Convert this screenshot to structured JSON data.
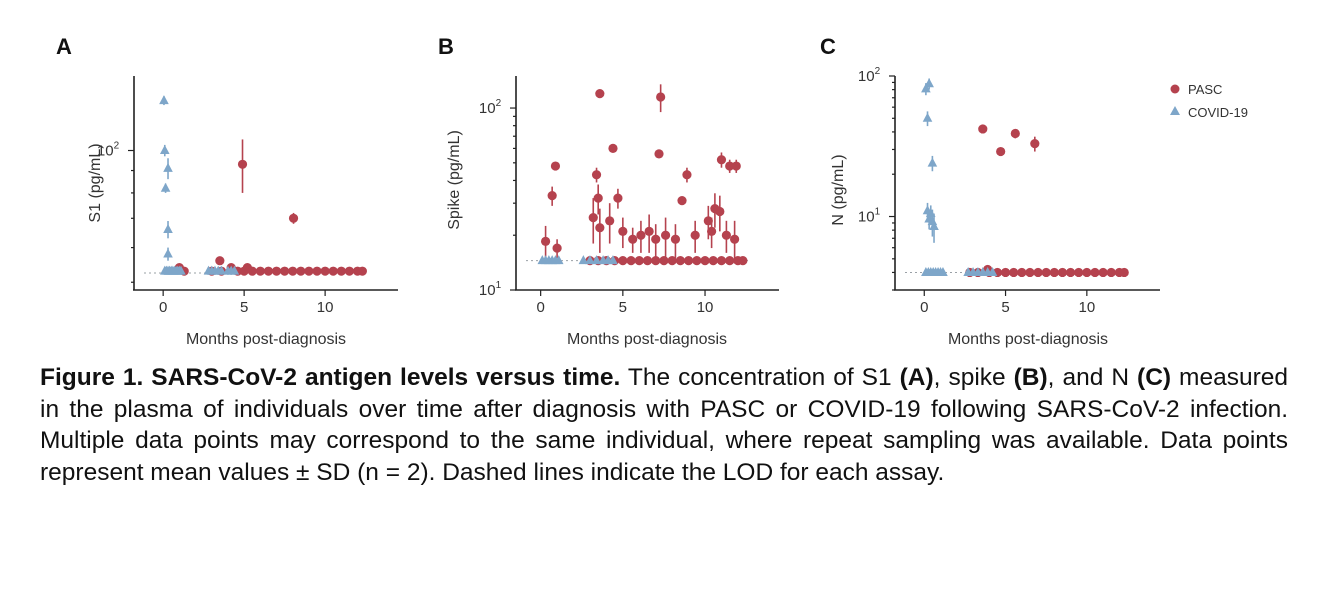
{
  "colors": {
    "pasc": "#b5424e",
    "covid": "#7ea6c9"
  },
  "legend": [
    "PASC",
    "COVID-19"
  ],
  "caption": {
    "title": "Figure 1. SARS-CoV-2 antigen levels versus time.",
    "t1": " The concentration of S1 ",
    "b1": "(A)",
    "t2": ", spike ",
    "b2": "(B)",
    "t3": ", and N ",
    "b3": "(C)",
    "t4": " measured in the plasma of individuals over time after diagnosis with PASC or COVID-19 following SARS-CoV-2 infection. Multiple data points may correspond to the same individual, where repeat sampling was available. Data points represent mean values ± SD (n = 2). Dashed lines indicate the LOD for each assay."
  },
  "chart_data": [
    {
      "panel": "A",
      "type": "scatter",
      "ylabel": "S1  (pg/mL)",
      "xlabel": "Months post-diagnosis",
      "yscale": "log",
      "xlim": [
        -1.8,
        14.5
      ],
      "ylim": [
        48,
        148
      ],
      "xticks": [
        0,
        5,
        10
      ],
      "yticks": [
        {
          "v": 100,
          "base": "10",
          "exp": "2"
        }
      ],
      "lod": 52.5,
      "series": [
        {
          "name": "COVID-19",
          "points": [
            [
              0.05,
              130,
              3
            ],
            [
              0.1,
              100,
              3
            ],
            [
              0.3,
              91,
              5
            ],
            [
              0.15,
              82,
              2
            ],
            [
              0.3,
              66,
              3
            ],
            [
              0.1,
              53,
              1
            ],
            [
              0.2,
              53,
              1
            ],
            [
              0.3,
              53,
              1
            ],
            [
              0.4,
              53,
              1
            ],
            [
              0.5,
              53,
              1
            ],
            [
              0.6,
              53,
              1
            ],
            [
              0.7,
              53,
              1
            ],
            [
              0.8,
              53,
              1
            ],
            [
              0.9,
              53,
              1
            ],
            [
              1.0,
              53,
              1
            ],
            [
              1.1,
              53,
              1
            ],
            [
              0.3,
              58,
              2
            ],
            [
              2.8,
              53,
              1
            ],
            [
              3.0,
              53,
              1
            ],
            [
              3.2,
              53,
              1
            ],
            [
              3.4,
              53,
              1
            ],
            [
              3.6,
              53,
              1
            ],
            [
              4.0,
              53,
              1
            ],
            [
              4.2,
              53,
              1
            ],
            [
              4.4,
              53,
              1
            ]
          ]
        },
        {
          "name": "PASC",
          "points": [
            [
              4.9,
              93,
              13
            ],
            [
              8.05,
              70,
              2
            ],
            [
              3.5,
              56,
              1
            ],
            [
              1.0,
              54,
              1
            ],
            [
              1.3,
              53,
              1
            ],
            [
              4.2,
              54,
              1
            ],
            [
              5.2,
              54,
              1
            ],
            [
              3.0,
              53,
              1
            ],
            [
              3.6,
              53,
              1
            ],
            [
              4.6,
              53,
              1
            ],
            [
              5.0,
              53,
              1
            ],
            [
              5.5,
              53,
              1
            ],
            [
              6.0,
              53,
              1
            ],
            [
              6.5,
              53,
              1
            ],
            [
              7.0,
              53,
              1
            ],
            [
              7.5,
              53,
              1
            ],
            [
              8.0,
              53,
              1
            ],
            [
              8.5,
              53,
              1
            ],
            [
              9.0,
              53,
              1
            ],
            [
              9.5,
              53,
              1
            ],
            [
              10.0,
              53,
              1
            ],
            [
              10.5,
              53,
              1
            ],
            [
              11.0,
              53,
              1
            ],
            [
              11.5,
              53,
              1
            ],
            [
              12.0,
              53,
              1
            ],
            [
              12.3,
              53,
              1
            ]
          ]
        }
      ]
    },
    {
      "panel": "B",
      "type": "scatter",
      "ylabel": "Spike  (pg/mL)",
      "xlabel": "Months post-diagnosis",
      "yscale": "log",
      "xlim": [
        -1.5,
        14.5
      ],
      "ylim": [
        10,
        150
      ],
      "xticks": [
        0,
        5,
        10
      ],
      "yticks": [
        {
          "v": 10,
          "base": "10",
          "exp": "1"
        },
        {
          "v": 100,
          "base": "10",
          "exp": "2"
        }
      ],
      "lod": 14.5,
      "series": [
        {
          "name": "COVID-19",
          "points": [
            [
              0.1,
              14.5,
              0.5
            ],
            [
              0.3,
              14.5,
              0.5
            ],
            [
              0.5,
              14.5,
              0.5
            ],
            [
              0.7,
              14.5,
              0.5
            ],
            [
              0.9,
              14.5,
              0.5
            ],
            [
              1.1,
              14.5,
              0.5
            ],
            [
              2.6,
              14.5,
              0.3
            ],
            [
              3.0,
              14.5,
              0.3
            ],
            [
              3.4,
              14.5,
              0.3
            ],
            [
              3.8,
              14.5,
              0.3
            ],
            [
              4.1,
              14.5,
              0.3
            ],
            [
              4.4,
              14.5,
              0.3
            ]
          ]
        },
        {
          "name": "PASC",
          "points": [
            [
              3.6,
              120,
              0
            ],
            [
              7.3,
              115,
              20
            ],
            [
              4.4,
              60,
              0
            ],
            [
              7.2,
              56,
              0
            ],
            [
              11.0,
              52,
              5
            ],
            [
              11.5,
              48,
              4
            ],
            [
              11.9,
              48,
              4
            ],
            [
              0.9,
              48,
              0
            ],
            [
              8.9,
              43,
              4
            ],
            [
              3.4,
              43,
              4
            ],
            [
              0.7,
              33,
              4
            ],
            [
              3.5,
              32,
              6
            ],
            [
              4.7,
              32,
              4
            ],
            [
              8.6,
              31,
              0
            ],
            [
              10.6,
              28,
              6
            ],
            [
              10.9,
              27,
              6
            ],
            [
              0.3,
              18.5,
              4
            ],
            [
              3.2,
              25,
              7
            ],
            [
              3.6,
              22,
              6
            ],
            [
              4.2,
              24,
              6
            ],
            [
              5.0,
              21,
              4
            ],
            [
              5.6,
              19,
              3
            ],
            [
              6.1,
              20,
              4
            ],
            [
              6.6,
              21,
              5
            ],
            [
              7.0,
              19,
              4
            ],
            [
              7.6,
              20,
              5
            ],
            [
              8.2,
              19,
              4
            ],
            [
              9.4,
              20,
              4
            ],
            [
              10.2,
              24,
              5
            ],
            [
              10.4,
              21,
              4
            ],
            [
              11.3,
              20,
              4
            ],
            [
              11.8,
              19,
              5
            ],
            [
              1.0,
              17,
              2
            ],
            [
              3.0,
              14.5,
              0.5
            ],
            [
              3.5,
              14.5,
              0.5
            ],
            [
              4.0,
              14.5,
              0.5
            ],
            [
              4.5,
              14.5,
              0.5
            ],
            [
              5.0,
              14.5,
              0.5
            ],
            [
              5.5,
              14.5,
              0.5
            ],
            [
              6.0,
              14.5,
              0.5
            ],
            [
              6.5,
              14.5,
              0.5
            ],
            [
              7.0,
              14.5,
              0.5
            ],
            [
              7.5,
              14.5,
              0.5
            ],
            [
              8.0,
              14.5,
              0.5
            ],
            [
              8.5,
              14.5,
              0.5
            ],
            [
              9.0,
              14.5,
              0.5
            ],
            [
              9.5,
              14.5,
              0.5
            ],
            [
              10.0,
              14.5,
              0.5
            ],
            [
              10.5,
              14.5,
              0.5
            ],
            [
              11.0,
              14.5,
              0.5
            ],
            [
              11.5,
              14.5,
              0.5
            ],
            [
              12.0,
              14.5,
              0.5
            ],
            [
              12.3,
              14.5,
              0.5
            ]
          ]
        }
      ]
    },
    {
      "panel": "C",
      "type": "scatter",
      "ylabel": "N  (pg/mL)",
      "xlabel": "Months post-diagnosis",
      "yscale": "log",
      "xlim": [
        -1.8,
        14.5
      ],
      "ylim": [
        3.0,
        100
      ],
      "xticks": [
        0,
        5,
        10
      ],
      "yticks": [
        {
          "v": 10,
          "base": "10",
          "exp": "1"
        },
        {
          "v": 100,
          "base": "10",
          "exp": "2"
        }
      ],
      "lod": 4.0,
      "series": [
        {
          "name": "COVID-19",
          "points": [
            [
              0.3,
              88,
              8
            ],
            [
              0.1,
              81,
              8
            ],
            [
              0.2,
              50,
              6
            ],
            [
              0.5,
              24,
              3
            ],
            [
              0.2,
              11,
              1.5
            ],
            [
              0.4,
              10.5,
              1.5
            ],
            [
              0.3,
              9.6,
              1.5
            ],
            [
              0.5,
              9.2,
              2
            ],
            [
              0.6,
              8.5,
              2
            ],
            [
              0.1,
              4.0,
              0.2
            ],
            [
              0.25,
              4.0,
              0.2
            ],
            [
              0.4,
              4.0,
              0.2
            ],
            [
              0.55,
              4.0,
              0.2
            ],
            [
              0.7,
              4.0,
              0.2
            ],
            [
              0.85,
              4.0,
              0.2
            ],
            [
              1.0,
              4.0,
              0.2
            ],
            [
              1.15,
              4.0,
              0.2
            ],
            [
              2.7,
              4.0,
              0.2
            ],
            [
              3.0,
              4.0,
              0.2
            ],
            [
              3.3,
              4.0,
              0.2
            ],
            [
              3.6,
              4.0,
              0.2
            ],
            [
              3.9,
              4.0,
              0.2
            ],
            [
              4.2,
              4.0,
              0.2
            ]
          ]
        },
        {
          "name": "PASC",
          "points": [
            [
              3.6,
              42,
              3
            ],
            [
              5.6,
              39,
              3
            ],
            [
              4.7,
              29,
              2
            ],
            [
              6.8,
              33,
              4
            ],
            [
              3.9,
              4.2,
              0.3
            ],
            [
              2.8,
              4.0,
              0.2
            ],
            [
              3.3,
              4.0,
              0.2
            ],
            [
              4.0,
              4.0,
              0.2
            ],
            [
              4.5,
              4.0,
              0.2
            ],
            [
              5.0,
              4.0,
              0.2
            ],
            [
              5.5,
              4.0,
              0.2
            ],
            [
              6.0,
              4.0,
              0.2
            ],
            [
              6.5,
              4.0,
              0.2
            ],
            [
              7.0,
              4.0,
              0.2
            ],
            [
              7.5,
              4.0,
              0.2
            ],
            [
              8.0,
              4.0,
              0.2
            ],
            [
              8.5,
              4.0,
              0.2
            ],
            [
              9.0,
              4.0,
              0.2
            ],
            [
              9.5,
              4.0,
              0.2
            ],
            [
              10.0,
              4.0,
              0.2
            ],
            [
              10.5,
              4.0,
              0.2
            ],
            [
              11.0,
              4.0,
              0.2
            ],
            [
              11.5,
              4.0,
              0.2
            ],
            [
              12.0,
              4.0,
              0.2
            ],
            [
              12.3,
              4.0,
              0.2
            ]
          ]
        }
      ]
    }
  ]
}
